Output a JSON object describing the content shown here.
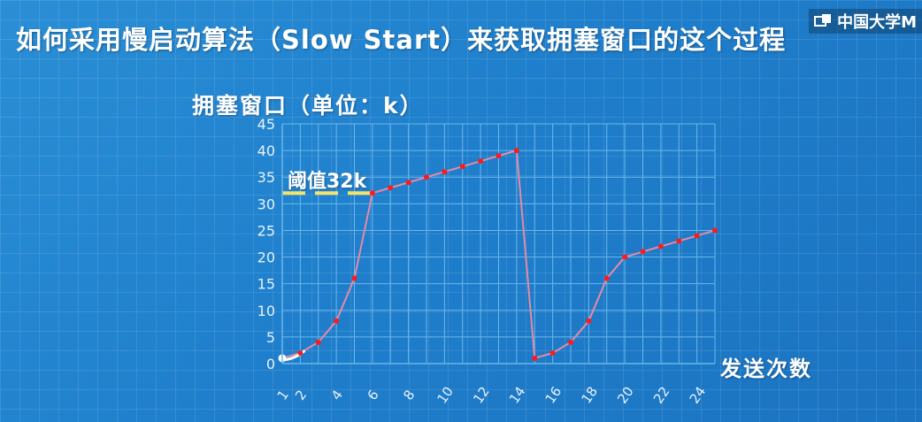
{
  "header": {
    "title": "如何采用慢启动算法（Slow Start）来获取拥塞窗口的这个过程",
    "logo_text": "中国大学M"
  },
  "chart_data": {
    "type": "line",
    "ylabel": "拥塞窗口（单位：k）",
    "xlabel": "发送次数",
    "ylim": [
      0,
      45
    ],
    "yticks": [
      "0",
      "5",
      "10",
      "15",
      "20",
      "25",
      "30",
      "35",
      "40",
      "45"
    ],
    "xlim": [
      1,
      25
    ],
    "xticks": [
      "1",
      "2",
      "4",
      "6",
      "8",
      "10",
      "12",
      "14",
      "16",
      "18",
      "20",
      "22",
      "24"
    ],
    "grid": true,
    "threshold": {
      "value": 32,
      "label": "阈值32k"
    },
    "series": [
      {
        "x": [
          1,
          2,
          3,
          4,
          5,
          6,
          7,
          8,
          9,
          10,
          11,
          12,
          13,
          14,
          15,
          16,
          17,
          18,
          19,
          20,
          21,
          22,
          23,
          24,
          25
        ],
        "values": [
          1,
          2,
          4,
          8,
          16,
          32,
          33,
          34,
          35,
          36,
          37,
          38,
          39,
          40,
          1,
          2,
          4,
          8,
          16,
          20,
          21,
          22,
          23,
          24,
          25
        ]
      }
    ],
    "colors": {
      "line": "#e58aa6",
      "points": "#ff1a1a",
      "grid": "#6ab7ea",
      "threshold": "#f3e46a",
      "start_marker": "#ffffff"
    }
  }
}
